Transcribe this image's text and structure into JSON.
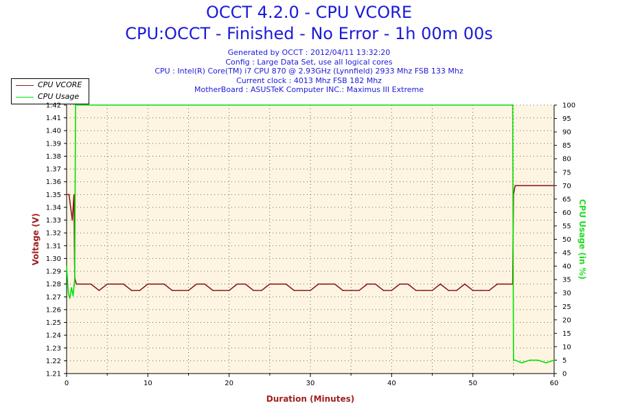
{
  "header": {
    "title": "OCCT 4.2.0 - CPU VCORE",
    "subtitle": "CPU:OCCT - Finished - No Error - 1h 00m 00s",
    "info_lines": [
      "Generated by OCCT : 2012/04/11 13:32:20",
      "Config : Large Data Set, use all logical cores",
      "CPU : Intel(R) Core(TM) i7 CPU 870 @ 2.93GHz (Lynnfield) 2933 Mhz FSB 133 Mhz",
      "Current clock : 4013 Mhz FSB 182 Mhz",
      "MotherBoard : ASUSTeK Computer INC.: Maximus III Extreme"
    ]
  },
  "legend": {
    "items": [
      {
        "label": "CPU VCORE",
        "color": "#8b1a1a"
      },
      {
        "label": "CPU Usage",
        "color": "#00e000"
      }
    ]
  },
  "chart_data": {
    "type": "line",
    "xlabel": "Duration (Minutes)",
    "ylabel": "Voltage (V)",
    "y2label": "CPU Usage (in %)",
    "xlim": [
      0,
      60
    ],
    "ylim": [
      1.21,
      1.42
    ],
    "y2lim": [
      0,
      100
    ],
    "x_ticks": [
      "0",
      "10",
      "20",
      "30",
      "40",
      "50",
      "60"
    ],
    "y_ticks": [
      "1.21",
      "1.22",
      "1.23",
      "1.24",
      "1.25",
      "1.26",
      "1.27",
      "1.28",
      "1.29",
      "1.30",
      "1.31",
      "1.32",
      "1.33",
      "1.34",
      "1.35",
      "1.36",
      "1.37",
      "1.38",
      "1.39",
      "1.40",
      "1.41",
      "1.42"
    ],
    "y2_ticks": [
      "0",
      "5",
      "10",
      "15",
      "20",
      "25",
      "30",
      "35",
      "40",
      "45",
      "50",
      "55",
      "60",
      "65",
      "70",
      "75",
      "80",
      "85",
      "90",
      "95",
      "100"
    ],
    "grid": true,
    "legend_position": "top-left",
    "series": [
      {
        "name": "CPU VCORE",
        "axis": "left",
        "color": "#8b1a1a",
        "x": [
          0,
          0.3,
          0.5,
          0.7,
          0.9,
          1.0,
          1.2,
          2,
          3,
          4,
          5,
          6,
          7,
          8,
          9,
          10,
          11,
          12,
          13,
          14,
          15,
          16,
          17,
          18,
          19,
          20,
          21,
          22,
          23,
          24,
          25,
          26,
          27,
          28,
          29,
          30,
          31,
          32,
          33,
          34,
          35,
          36,
          37,
          38,
          39,
          40,
          41,
          42,
          43,
          44,
          45,
          46,
          47,
          48,
          49,
          50,
          51,
          52,
          53,
          54,
          54.9,
          55.0,
          55.2,
          56,
          57,
          58,
          59,
          60
        ],
        "y": [
          1.35,
          1.35,
          1.34,
          1.33,
          1.35,
          1.285,
          1.28,
          1.28,
          1.28,
          1.275,
          1.28,
          1.28,
          1.28,
          1.275,
          1.275,
          1.28,
          1.28,
          1.28,
          1.275,
          1.275,
          1.275,
          1.28,
          1.28,
          1.275,
          1.275,
          1.275,
          1.28,
          1.28,
          1.275,
          1.275,
          1.28,
          1.28,
          1.28,
          1.275,
          1.275,
          1.275,
          1.28,
          1.28,
          1.28,
          1.275,
          1.275,
          1.275,
          1.28,
          1.28,
          1.275,
          1.275,
          1.28,
          1.28,
          1.275,
          1.275,
          1.275,
          1.28,
          1.275,
          1.275,
          1.28,
          1.275,
          1.275,
          1.275,
          1.28,
          1.28,
          1.28,
          1.35,
          1.357,
          1.357,
          1.357,
          1.357,
          1.357,
          1.357
        ]
      },
      {
        "name": "CPU Usage",
        "axis": "right",
        "color": "#00e000",
        "x": [
          0,
          0.2,
          0.4,
          0.6,
          0.8,
          1.0,
          1.1,
          2,
          10,
          20,
          30,
          40,
          50,
          54.8,
          54.9,
          55.0,
          55.2,
          56,
          57,
          58,
          59,
          60
        ],
        "y": [
          40,
          30,
          28,
          32,
          29,
          35,
          100,
          100,
          100,
          100,
          100,
          100,
          100,
          100,
          100,
          5,
          5,
          4,
          5,
          5,
          4,
          5
        ]
      }
    ]
  }
}
